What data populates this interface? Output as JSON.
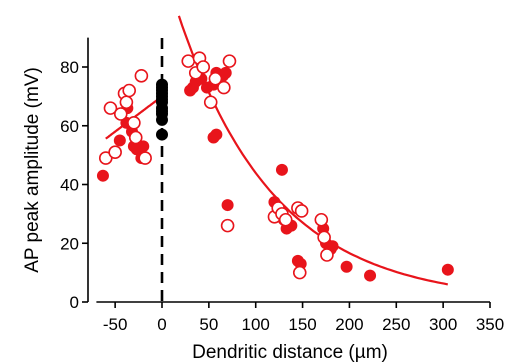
{
  "chart_data": {
    "type": "scatter",
    "title": "",
    "xlabel": "Dendritic distance (µm)",
    "ylabel": "AP peak amplitude (mV)",
    "xlim": [
      -70,
      350
    ],
    "ylim": [
      0,
      90
    ],
    "x_ticks": [
      -50,
      0,
      50,
      100,
      150,
      200,
      250,
      300,
      350
    ],
    "x_tick_labels": [
      "-50",
      "0",
      "50",
      "100",
      "150",
      "200",
      "250",
      "300",
      "350"
    ],
    "y_ticks": [
      0,
      20,
      40,
      60,
      80
    ],
    "y_tick_labels": [
      "0",
      "20",
      "40",
      "60",
      "80"
    ],
    "grid": false,
    "reference_line": {
      "x": 0,
      "style": "dashed",
      "color": "#000000"
    },
    "colors": {
      "series_red": "#e8141b",
      "soma": "#000000",
      "fit": "#e8141b"
    },
    "series": [
      {
        "marker": "filled",
        "color": "#e8141b",
        "points": [
          [
            -63,
            43
          ],
          [
            -45,
            55
          ],
          [
            -38,
            61
          ],
          [
            -32,
            58
          ],
          [
            -30,
            53
          ],
          [
            -27,
            52
          ],
          [
            -22,
            49
          ],
          [
            -20,
            53
          ],
          [
            -37,
            66
          ],
          [
            30,
            72
          ],
          [
            33,
            73
          ],
          [
            36,
            75
          ],
          [
            42,
            76
          ],
          [
            48,
            73
          ],
          [
            55,
            74
          ],
          [
            58,
            78
          ],
          [
            60,
            75
          ],
          [
            65,
            77
          ],
          [
            68,
            78
          ],
          [
            55,
            56
          ],
          [
            58,
            57
          ],
          [
            70,
            33
          ],
          [
            128,
            45
          ],
          [
            120,
            34
          ],
          [
            130,
            28
          ],
          [
            133,
            25
          ],
          [
            138,
            26
          ],
          [
            145,
            14
          ],
          [
            148,
            13
          ],
          [
            172,
            25
          ],
          [
            175,
            20
          ],
          [
            180,
            18
          ],
          [
            182,
            19
          ],
          [
            197,
            12
          ],
          [
            222,
            9
          ],
          [
            305,
            11
          ]
        ]
      },
      {
        "marker": "open",
        "color": "#e8141b",
        "points": [
          [
            -60,
            49
          ],
          [
            -55,
            66
          ],
          [
            -50,
            51
          ],
          [
            -44,
            64
          ],
          [
            -40,
            71
          ],
          [
            -38,
            68
          ],
          [
            -35,
            72
          ],
          [
            -30,
            61
          ],
          [
            -28,
            56
          ],
          [
            -22,
            77
          ],
          [
            -18,
            49
          ],
          [
            28,
            82
          ],
          [
            36,
            78
          ],
          [
            40,
            83
          ],
          [
            44,
            80
          ],
          [
            52,
            68
          ],
          [
            57,
            76
          ],
          [
            66,
            73
          ],
          [
            72,
            82
          ],
          [
            70,
            26
          ],
          [
            120,
            29
          ],
          [
            124,
            32
          ],
          [
            128,
            30
          ],
          [
            132,
            28
          ],
          [
            145,
            32
          ],
          [
            149,
            31
          ],
          [
            147,
            10
          ],
          [
            170,
            28
          ],
          [
            173,
            22
          ],
          [
            176,
            16
          ]
        ]
      },
      {
        "name": "",
        "marker": "filled",
        "color": "#000000",
        "points": [
          [
            0,
            57
          ],
          [
            0,
            62
          ],
          [
            0,
            64
          ],
          [
            0,
            65
          ],
          [
            0,
            66
          ],
          [
            0,
            68
          ],
          [
            0,
            69
          ],
          [
            0,
            70
          ],
          [
            0,
            71
          ],
          [
            0,
            72
          ],
          [
            0,
            73
          ],
          [
            0,
            74
          ]
        ]
      }
    ],
    "fit_lines": [
      {
        "type": "linear",
        "color": "#e8141b",
        "x_range": [
          -60,
          0
        ],
        "slope": 0.24,
        "intercept": 70
      },
      {
        "type": "exponential",
        "color": "#e8141b",
        "x_range": [
          18,
          305
        ],
        "a": 116,
        "tau": 103
      }
    ]
  }
}
